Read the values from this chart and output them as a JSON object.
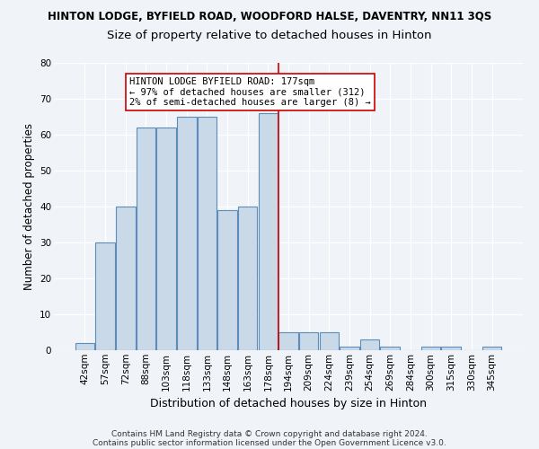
{
  "title": "HINTON LODGE, BYFIELD ROAD, WOODFORD HALSE, DAVENTRY, NN11 3QS",
  "subtitle": "Size of property relative to detached houses in Hinton",
  "xlabel": "Distribution of detached houses by size in Hinton",
  "ylabel": "Number of detached properties",
  "bar_labels": [
    "42sqm",
    "57sqm",
    "72sqm",
    "88sqm",
    "103sqm",
    "118sqm",
    "133sqm",
    "148sqm",
    "163sqm",
    "178sqm",
    "194sqm",
    "209sqm",
    "224sqm",
    "239sqm",
    "254sqm",
    "269sqm",
    "284sqm",
    "300sqm",
    "315sqm",
    "330sqm",
    "345sqm"
  ],
  "bar_values": [
    2,
    30,
    40,
    62,
    62,
    65,
    65,
    39,
    40,
    66,
    5,
    5,
    5,
    1,
    3,
    1,
    0,
    1,
    1,
    0,
    1
  ],
  "bar_color": "#c9d9e8",
  "bar_edge_color": "#5b8db8",
  "ylim": [
    0,
    80
  ],
  "yticks": [
    0,
    10,
    20,
    30,
    40,
    50,
    60,
    70,
    80
  ],
  "vline_x_index": 9.5,
  "vline_color": "#cc0000",
  "annotation_text": "HINTON LODGE BYFIELD ROAD: 177sqm\n← 97% of detached houses are smaller (312)\n2% of semi-detached houses are larger (8) →",
  "annotation_box_color": "#ffffff",
  "annotation_box_edge": "#cc0000",
  "footer1": "Contains HM Land Registry data © Crown copyright and database right 2024.",
  "footer2": "Contains public sector information licensed under the Open Government Licence v3.0.",
  "bg_color": "#f0f4f8",
  "plot_bg_color": "#f0f4f8",
  "title_fontsize": 8.5,
  "subtitle_fontsize": 9.5,
  "ylabel_fontsize": 8.5,
  "xlabel_fontsize": 9,
  "tick_fontsize": 7.5,
  "footer_fontsize": 6.5
}
